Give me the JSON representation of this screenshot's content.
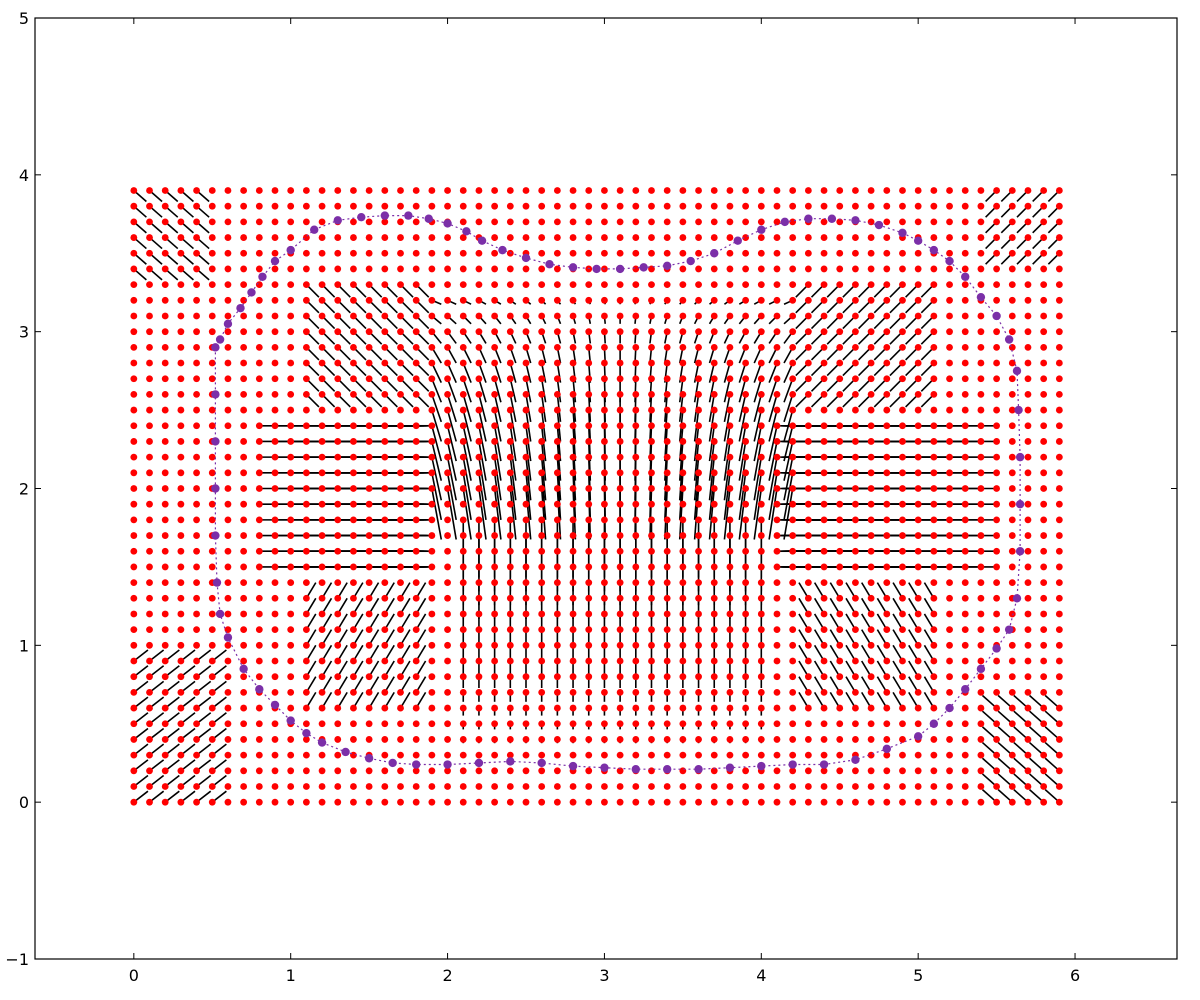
{
  "chart_data": {
    "type": "scatter",
    "title": "",
    "xlabel": "",
    "ylabel": "",
    "xlim": [
      -0.63,
      6.65
    ],
    "ylim": [
      -1,
      5
    ],
    "x_ticks": [
      0,
      1,
      2,
      3,
      4,
      5,
      6
    ],
    "y_ticks": [
      -1,
      0,
      1,
      2,
      3,
      4,
      5
    ],
    "grid": false,
    "legend": "none",
    "grid_points": {
      "x_start": 0,
      "x_step": 0.1,
      "x_count": 60,
      "y_start": 0,
      "y_step": 0.1,
      "y_count": 40,
      "color": "#ff0000"
    },
    "inner_shape": {
      "description_free": true,
      "top": 2.0,
      "bottom": 1.9,
      "left_notch": [
        [
          1.8,
          2.8
        ],
        [
          1.8,
          1.2
        ]
      ],
      "right_notch": [
        [
          4.3,
          2.8
        ],
        [
          4.3,
          1.2
        ]
      ],
      "arrow_color": "#000000"
    },
    "contour": {
      "color": "#7b2fa8",
      "points": [
        [
          0.52,
          2.9
        ],
        [
          0.52,
          2.6
        ],
        [
          0.52,
          2.3
        ],
        [
          0.52,
          2.0
        ],
        [
          0.52,
          1.7
        ],
        [
          0.53,
          1.4
        ],
        [
          0.55,
          1.2
        ],
        [
          0.6,
          1.05
        ],
        [
          0.7,
          0.85
        ],
        [
          0.8,
          0.72
        ],
        [
          0.9,
          0.62
        ],
        [
          1.0,
          0.52
        ],
        [
          1.1,
          0.44
        ],
        [
          1.2,
          0.38
        ],
        [
          1.35,
          0.32
        ],
        [
          1.5,
          0.28
        ],
        [
          1.65,
          0.25
        ],
        [
          1.8,
          0.24
        ],
        [
          2.0,
          0.24
        ],
        [
          2.2,
          0.25
        ],
        [
          2.4,
          0.26
        ],
        [
          2.6,
          0.25
        ],
        [
          2.8,
          0.23
        ],
        [
          3.0,
          0.22
        ],
        [
          3.2,
          0.21
        ],
        [
          3.4,
          0.21
        ],
        [
          3.6,
          0.21
        ],
        [
          3.8,
          0.22
        ],
        [
          4.0,
          0.23
        ],
        [
          4.2,
          0.24
        ],
        [
          4.4,
          0.24
        ],
        [
          4.6,
          0.27
        ],
        [
          4.8,
          0.34
        ],
        [
          5.0,
          0.42
        ],
        [
          5.1,
          0.5
        ],
        [
          5.2,
          0.6
        ],
        [
          5.3,
          0.72
        ],
        [
          5.4,
          0.85
        ],
        [
          5.5,
          0.98
        ],
        [
          5.58,
          1.1
        ],
        [
          5.63,
          1.3
        ],
        [
          5.65,
          1.6
        ],
        [
          5.65,
          1.9
        ],
        [
          5.65,
          2.2
        ],
        [
          5.64,
          2.5
        ],
        [
          5.63,
          2.75
        ],
        [
          5.58,
          2.95
        ],
        [
          5.5,
          3.1
        ],
        [
          5.4,
          3.22
        ],
        [
          5.3,
          3.35
        ],
        [
          5.2,
          3.45
        ],
        [
          5.1,
          3.52
        ],
        [
          5.0,
          3.58
        ],
        [
          4.9,
          3.63
        ],
        [
          4.75,
          3.68
        ],
        [
          4.6,
          3.71
        ],
        [
          4.45,
          3.72
        ],
        [
          4.3,
          3.72
        ],
        [
          4.15,
          3.7
        ],
        [
          4.0,
          3.65
        ],
        [
          3.85,
          3.58
        ],
        [
          3.7,
          3.5
        ],
        [
          3.55,
          3.45
        ],
        [
          3.4,
          3.42
        ],
        [
          3.25,
          3.41
        ],
        [
          3.1,
          3.4
        ],
        [
          2.95,
          3.4
        ],
        [
          2.8,
          3.41
        ],
        [
          2.65,
          3.43
        ],
        [
          2.5,
          3.47
        ],
        [
          2.35,
          3.52
        ],
        [
          2.22,
          3.58
        ],
        [
          2.12,
          3.64
        ],
        [
          2.0,
          3.69
        ],
        [
          1.88,
          3.72
        ],
        [
          1.75,
          3.74
        ],
        [
          1.6,
          3.74
        ],
        [
          1.45,
          3.73
        ],
        [
          1.3,
          3.71
        ],
        [
          1.15,
          3.65
        ],
        [
          1.0,
          3.52
        ],
        [
          0.9,
          3.45
        ],
        [
          0.82,
          3.35
        ],
        [
          0.75,
          3.25
        ],
        [
          0.68,
          3.15
        ],
        [
          0.6,
          3.05
        ],
        [
          0.55,
          2.95
        ]
      ]
    }
  }
}
